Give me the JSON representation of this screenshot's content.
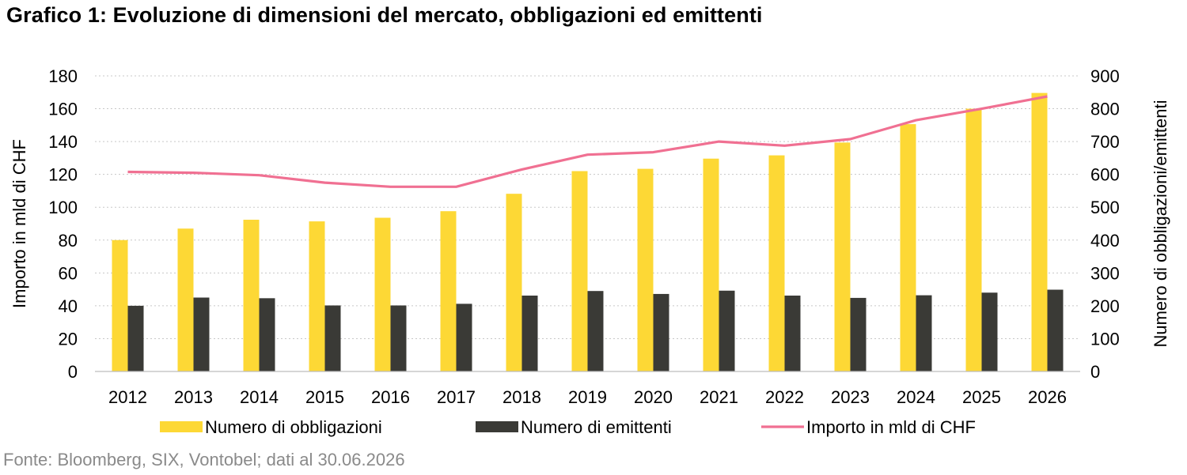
{
  "title": "Grafico 1: Evoluzione di dimensioni del mercato, obbligazioni ed emittenti",
  "source": "Fonte: Bloomberg, SIX, Vontobel; dati al 30.06.2026",
  "chart_data": {
    "type": "bar",
    "categories": [
      "2012",
      "2013",
      "2014",
      "2015",
      "2016",
      "2017",
      "2018",
      "2019",
      "2020",
      "2021",
      "2022",
      "2023",
      "2024",
      "2025",
      "2026"
    ],
    "series": [
      {
        "name": "Numero di obbligazioni",
        "type": "bar",
        "axis": "right",
        "color": "#FDD835",
        "values": [
          400,
          435,
          462,
          457,
          468,
          488,
          541,
          610,
          617,
          648,
          658,
          697,
          753,
          800,
          848
        ]
      },
      {
        "name": "Numero di emittenti",
        "type": "bar",
        "axis": "right",
        "color": "#3A3A36",
        "values": [
          200,
          225,
          223,
          201,
          201,
          206,
          231,
          245,
          236,
          246,
          231,
          224,
          232,
          240,
          249
        ]
      },
      {
        "name": "Importo in mld di CHF",
        "type": "line",
        "axis": "left",
        "color": "#F07092",
        "values": [
          121.5,
          121,
          119.5,
          115,
          112.5,
          112.5,
          123,
          132,
          133.5,
          140,
          137.5,
          141.5,
          153,
          160,
          167.5
        ]
      }
    ],
    "ylabel": "Importo in mld di CHF",
    "ylim": [
      0,
      180
    ],
    "yticks": [
      "0",
      "20",
      "40",
      "60",
      "80",
      "100",
      "120",
      "140",
      "160",
      "180"
    ],
    "y2label": "Numero di obbligazioni/emittenti",
    "y2lim": [
      0,
      900
    ],
    "y2ticks": [
      "0",
      "100",
      "200",
      "300",
      "400",
      "500",
      "600",
      "700",
      "800",
      "900"
    ],
    "grid": "horizontal dotted",
    "legend": "bottom"
  }
}
